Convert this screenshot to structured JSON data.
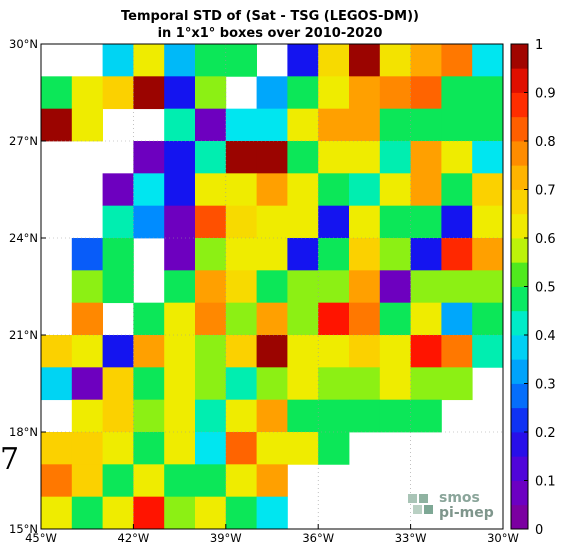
{
  "title_line1": "Temporal STD of (Sat - TSG (LEGOS-DM))",
  "title_line2": "in 1°x1° boxes over 2010-2020",
  "edge_text": "7",
  "logo": {
    "line1": "smos",
    "line2": "pi-mep"
  },
  "chart_data": {
    "type": "heatmap",
    "title": "Temporal STD of (Sat - TSG (LEGOS-DM)) in 1°x1° boxes over 2010-2020",
    "xlim": [
      -45,
      -30
    ],
    "ylim": [
      15,
      30
    ],
    "xticks": [
      {
        "value": -45,
        "label": "45°W"
      },
      {
        "value": -42,
        "label": "42°W"
      },
      {
        "value": -39,
        "label": "39°W"
      },
      {
        "value": -36,
        "label": "36°W"
      },
      {
        "value": -33,
        "label": "33°W"
      },
      {
        "value": -30,
        "label": "30°W"
      }
    ],
    "yticks": [
      {
        "value": 30,
        "label": "30°N"
      },
      {
        "value": 27,
        "label": "27°N"
      },
      {
        "value": 24,
        "label": "24°N"
      },
      {
        "value": 21,
        "label": "21°N"
      },
      {
        "value": 18,
        "label": "18°N"
      },
      {
        "value": 15,
        "label": "15°N"
      }
    ],
    "grid": true,
    "colorbar": {
      "range": [
        0,
        1
      ],
      "colormap": "jet-like, purple to dark red",
      "ticks": [
        {
          "value": 0,
          "label": "0"
        },
        {
          "value": 0.1,
          "label": "0.1"
        },
        {
          "value": 0.2,
          "label": "0.2"
        },
        {
          "value": 0.3,
          "label": "0.3"
        },
        {
          "value": 0.4,
          "label": "0.4"
        },
        {
          "value": 0.5,
          "label": "0.5"
        },
        {
          "value": 0.6,
          "label": "0.6"
        },
        {
          "value": 0.7,
          "label": "0.7"
        },
        {
          "value": 0.8,
          "label": "0.8"
        },
        {
          "value": 0.9,
          "label": "0.9"
        },
        {
          "value": 1,
          "label": "1"
        }
      ]
    },
    "rows_lat_top": [
      30,
      29,
      28,
      27,
      26,
      25,
      24,
      23,
      22,
      21,
      20,
      19,
      18,
      17,
      16
    ],
    "cols_lon_left": [
      -45,
      -44,
      -43,
      -42,
      -41,
      -40,
      -39,
      -38,
      -37,
      -36,
      -35,
      -34,
      -33,
      -32,
      -31
    ],
    "values": [
      [
        null,
        null,
        0.38,
        0.62,
        0.35,
        0.48,
        0.48,
        null,
        0.2,
        0.66,
        0.98,
        0.64,
        0.74,
        0.8,
        0.4
      ],
      [
        0.48,
        0.62,
        0.68,
        0.98,
        0.2,
        0.55,
        null,
        0.33,
        0.48,
        0.62,
        0.75,
        0.78,
        0.82,
        0.48,
        0.48
      ],
      [
        0.98,
        0.62,
        null,
        null,
        0.44,
        0.07,
        0.4,
        0.4,
        0.62,
        0.75,
        0.75,
        0.48,
        0.48,
        0.48,
        0.48
      ],
      [
        null,
        null,
        null,
        0.07,
        0.2,
        0.44,
        0.98,
        0.98,
        0.48,
        0.62,
        0.62,
        0.44,
        0.75,
        0.62,
        0.4
      ],
      [
        null,
        null,
        0.07,
        0.4,
        0.2,
        0.62,
        0.62,
        0.75,
        0.62,
        0.48,
        0.44,
        0.62,
        0.75,
        0.48,
        0.68
      ],
      [
        null,
        null,
        0.44,
        0.3,
        0.07,
        0.84,
        0.66,
        0.62,
        0.62,
        0.2,
        0.62,
        0.48,
        0.48,
        0.2,
        0.62
      ],
      [
        null,
        0.26,
        0.48,
        null,
        0.07,
        0.55,
        0.62,
        0.62,
        0.2,
        0.48,
        0.68,
        0.55,
        0.2,
        0.88,
        0.75
      ],
      [
        null,
        0.55,
        0.48,
        null,
        0.48,
        0.75,
        0.66,
        0.48,
        0.55,
        0.55,
        0.75,
        0.07,
        0.55,
        0.55,
        0.55
      ],
      [
        null,
        0.78,
        null,
        0.48,
        0.62,
        0.78,
        0.55,
        0.75,
        0.55,
        0.9,
        0.8,
        0.48,
        0.62,
        0.33,
        0.48
      ],
      [
        0.68,
        0.62,
        0.2,
        0.75,
        0.62,
        0.55,
        0.68,
        0.98,
        0.62,
        0.62,
        0.68,
        0.62,
        0.9,
        0.8,
        0.44
      ],
      [
        0.38,
        0.07,
        0.68,
        0.48,
        0.62,
        0.55,
        0.44,
        0.55,
        0.62,
        0.55,
        0.55,
        0.62,
        0.55,
        0.55,
        null
      ],
      [
        null,
        0.62,
        0.68,
        0.55,
        0.62,
        0.44,
        0.62,
        0.75,
        0.48,
        0.48,
        0.48,
        0.48,
        0.48,
        null,
        null
      ],
      [
        0.68,
        0.68,
        0.62,
        0.48,
        0.62,
        0.4,
        0.82,
        0.62,
        0.62,
        0.48,
        null,
        null,
        null,
        null,
        null
      ],
      [
        0.8,
        0.68,
        0.48,
        0.62,
        0.48,
        0.48,
        0.62,
        0.75,
        null,
        null,
        null,
        null,
        null,
        null,
        null
      ],
      [
        0.62,
        0.48,
        0.62,
        0.9,
        0.55,
        0.62,
        0.48,
        0.4,
        null,
        null,
        null,
        null,
        null,
        null,
        null
      ]
    ]
  }
}
